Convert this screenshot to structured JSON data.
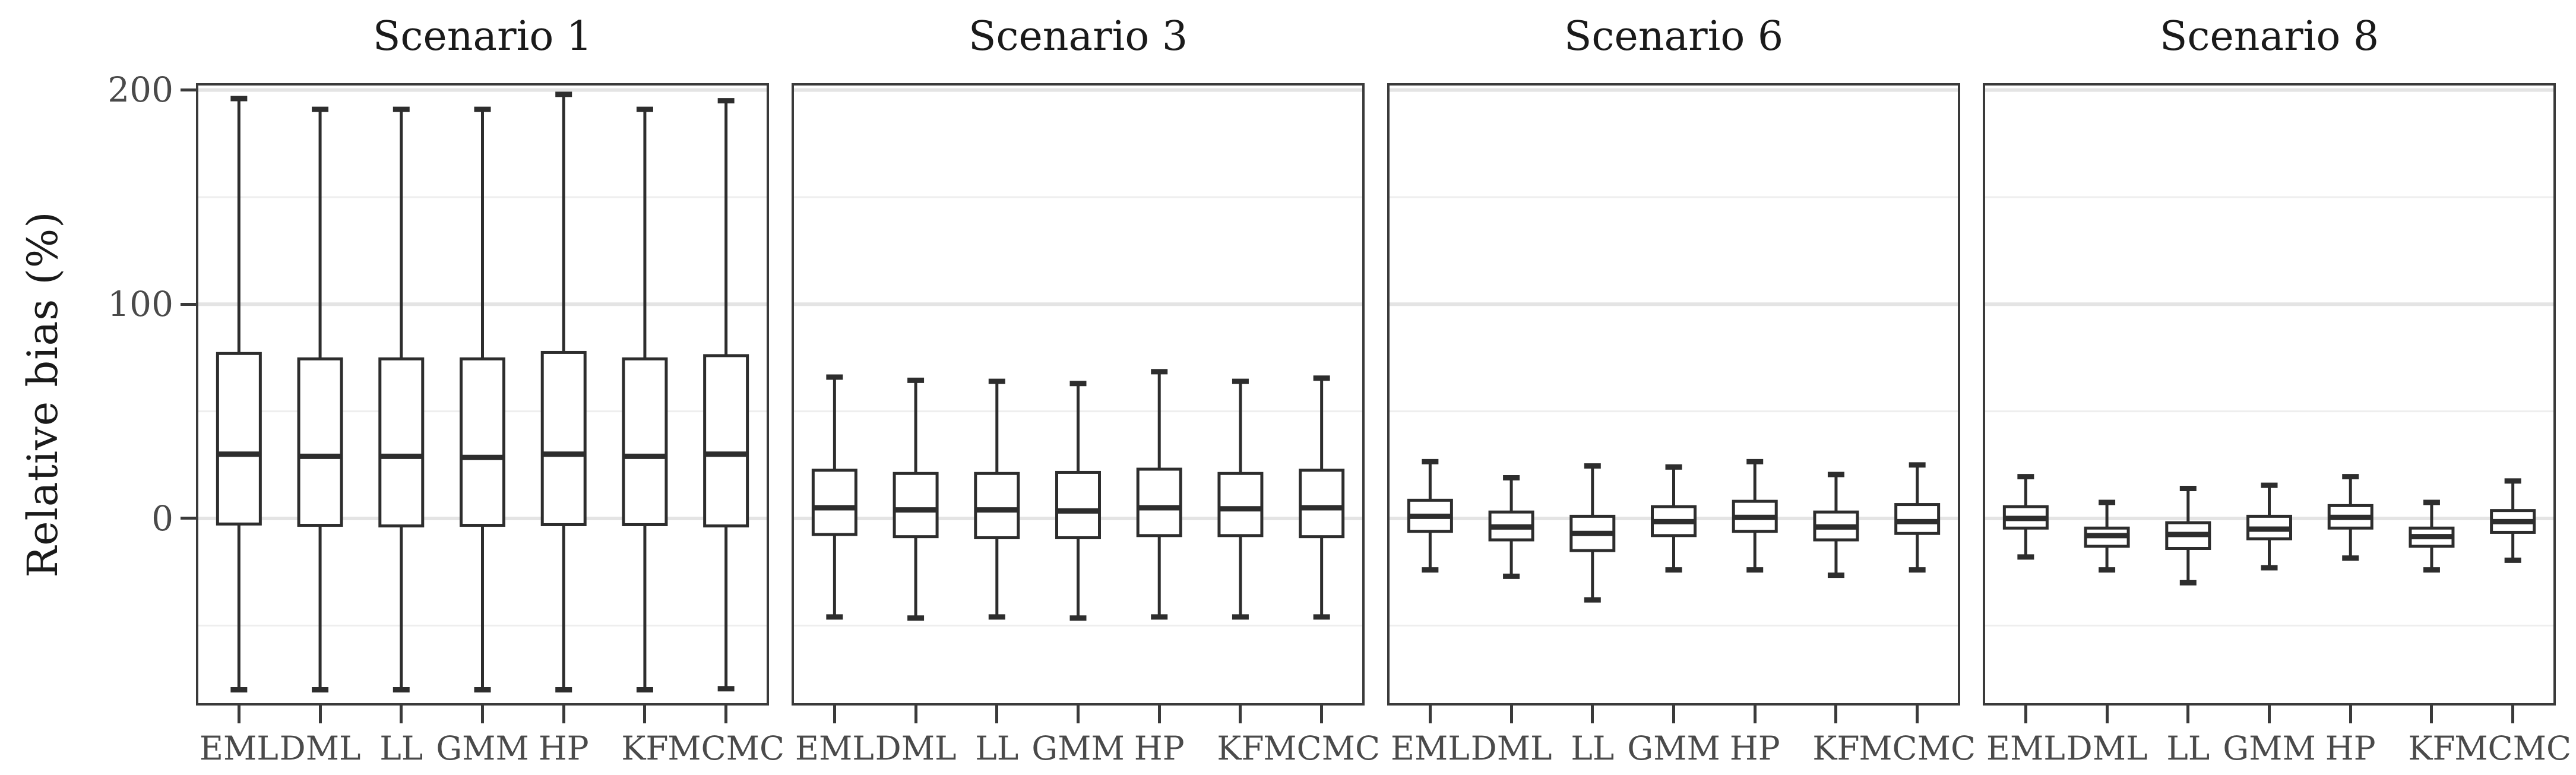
{
  "chart_data": {
    "type": "boxplot",
    "title": "",
    "ylabel": "Relative bias (%)",
    "xlabel": "",
    "categories": [
      "EML",
      "DML",
      "LL",
      "GMM",
      "HP",
      "KF",
      "MCMC"
    ],
    "y_ticks": [
      {
        "value": 200,
        "label": "200"
      },
      {
        "value": 100,
        "label": "100"
      },
      {
        "value": 0,
        "label": "0"
      }
    ],
    "ylim": [
      -86,
      202
    ],
    "y_major_gridlines": [
      200,
      100,
      0
    ],
    "y_minor_gridlines": [
      150,
      50,
      -50
    ],
    "grid": "horizontal only",
    "legend_position": "none",
    "stat_keys": [
      "whisker_low",
      "q1",
      "median",
      "q3",
      "whisker_high"
    ],
    "panels": [
      {
        "title": "Scenario 1",
        "stats": [
          [
            -80,
            -2.6,
            30,
            77,
            196
          ],
          [
            -80,
            -3.2,
            29,
            74.5,
            191
          ],
          [
            -80,
            -3.5,
            29,
            74.5,
            191
          ],
          [
            -80,
            -3.2,
            28.5,
            74.5,
            191
          ],
          [
            -80,
            -2.9,
            30,
            77.5,
            198
          ],
          [
            -80,
            -2.9,
            29,
            74.5,
            191
          ],
          [
            -79.5,
            -3.5,
            30,
            76,
            195
          ]
        ]
      },
      {
        "title": "Scenario 3",
        "stats": [
          [
            -46,
            -7.5,
            5,
            22.5,
            66
          ],
          [
            -46.5,
            -8.5,
            4,
            21,
            64.5
          ],
          [
            -46,
            -9,
            4,
            21,
            64
          ],
          [
            -46.5,
            -9,
            3.5,
            21.5,
            63
          ],
          [
            -46,
            -8,
            5,
            23,
            68.5
          ],
          [
            -46,
            -8,
            4.5,
            21,
            64
          ],
          [
            -46,
            -8.5,
            5,
            22.5,
            65.5
          ]
        ]
      },
      {
        "title": "Scenario 6",
        "stats": [
          [
            -24,
            -6,
            1,
            8.5,
            26.5
          ],
          [
            -27,
            -10,
            -4,
            3,
            19
          ],
          [
            -38,
            -15,
            -7,
            1,
            24.5
          ],
          [
            -24,
            -8,
            -1.5,
            5.5,
            24
          ],
          [
            -24,
            -6,
            0.5,
            8,
            26.5
          ],
          [
            -26.5,
            -10,
            -4,
            3,
            20.5
          ],
          [
            -24,
            -7,
            -1.5,
            6.5,
            25
          ]
        ]
      },
      {
        "title": "Scenario 8",
        "stats": [
          [
            -18,
            -4.5,
            0,
            5.5,
            19.5
          ],
          [
            -24,
            -13,
            -8,
            -4.5,
            7.5
          ],
          [
            -30,
            -14,
            -7.5,
            -2,
            14
          ],
          [
            -23,
            -9.5,
            -5,
            1,
            15.5
          ],
          [
            -18.5,
            -4.5,
            0.5,
            6,
            19.5
          ],
          [
            -24,
            -13,
            -8.5,
            -4.5,
            7.5
          ],
          [
            -19.5,
            -6.5,
            -1.5,
            3.7,
            17.5
          ]
        ]
      }
    ],
    "style": {
      "background": "#ffffff",
      "panel_border": "#3a3a3a",
      "box_stroke": "#2d2d2d",
      "box_fill": "#ffffff",
      "grid_major": "#e4e4e4",
      "grid_minor": "#eeeeee",
      "tick_color": "#3a3a3a",
      "tick_label_color": "#4a4a4a",
      "title_color": "#1a1a1a"
    }
  }
}
